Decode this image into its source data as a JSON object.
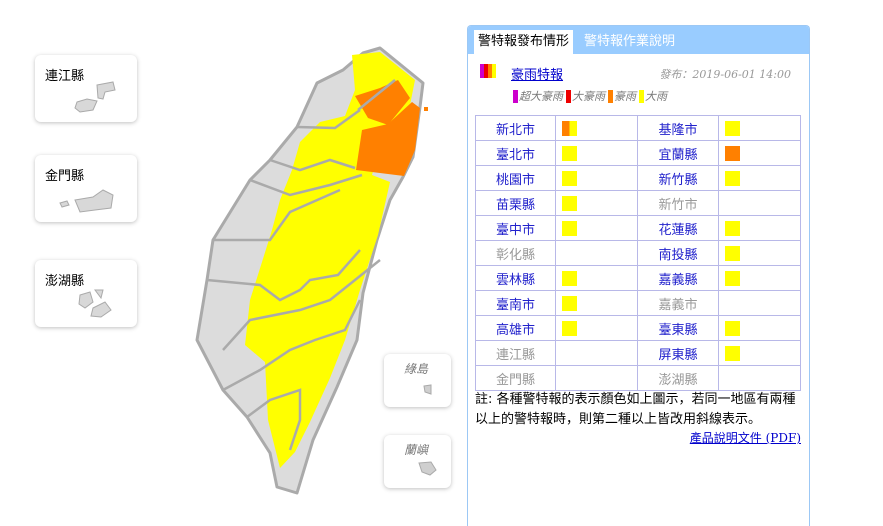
{
  "islands": [
    {
      "label": "連江縣"
    },
    {
      "label": "金門縣"
    },
    {
      "label": "澎湖縣"
    },
    {
      "label": "綠島"
    },
    {
      "label": "蘭嶼"
    }
  ],
  "tabs": [
    {
      "label": "警特報發布情形",
      "active": true
    },
    {
      "label": "警特報作業說明",
      "active": false
    }
  ],
  "product": {
    "label": "豪雨特報",
    "issued": "發布：2019-06-01 14:00"
  },
  "levels": [
    {
      "label": "超大豪雨",
      "color": "#cc00cc"
    },
    {
      "label": "大豪雨",
      "color": "#ee0000"
    },
    {
      "label": "豪雨",
      "color": "#ff8000"
    },
    {
      "label": "大雨",
      "color": "#ffff00"
    }
  ],
  "rows": [
    [
      {
        "name": "新北市",
        "active": true,
        "colors": [
          "#ff8000",
          "#ffff00"
        ]
      },
      {
        "name": "基隆市",
        "active": true,
        "colors": [
          "#ffff00"
        ]
      }
    ],
    [
      {
        "name": "臺北市",
        "active": true,
        "colors": [
          "#ffff00"
        ]
      },
      {
        "name": "宜蘭縣",
        "active": true,
        "colors": [
          "#ff8000"
        ]
      }
    ],
    [
      {
        "name": "桃園市",
        "active": true,
        "colors": [
          "#ffff00"
        ]
      },
      {
        "name": "新竹縣",
        "active": true,
        "colors": [
          "#ffff00"
        ]
      }
    ],
    [
      {
        "name": "苗栗縣",
        "active": true,
        "colors": [
          "#ffff00"
        ]
      },
      {
        "name": "新竹市",
        "active": false,
        "colors": []
      }
    ],
    [
      {
        "name": "臺中市",
        "active": true,
        "colors": [
          "#ffff00"
        ]
      },
      {
        "name": "花蓮縣",
        "active": true,
        "colors": [
          "#ffff00"
        ]
      }
    ],
    [
      {
        "name": "彰化縣",
        "active": false,
        "colors": []
      },
      {
        "name": "南投縣",
        "active": true,
        "colors": [
          "#ffff00"
        ]
      }
    ],
    [
      {
        "name": "雲林縣",
        "active": true,
        "colors": [
          "#ffff00"
        ]
      },
      {
        "name": "嘉義縣",
        "active": true,
        "colors": [
          "#ffff00"
        ]
      }
    ],
    [
      {
        "name": "臺南市",
        "active": true,
        "colors": [
          "#ffff00"
        ]
      },
      {
        "name": "嘉義市",
        "active": false,
        "colors": []
      }
    ],
    [
      {
        "name": "高雄市",
        "active": true,
        "colors": [
          "#ffff00"
        ]
      },
      {
        "name": "臺東縣",
        "active": true,
        "colors": [
          "#ffff00"
        ]
      }
    ],
    [
      {
        "name": "連江縣",
        "active": false,
        "colors": []
      },
      {
        "name": "屏東縣",
        "active": true,
        "colors": [
          "#ffff00"
        ]
      }
    ],
    [
      {
        "name": "金門縣",
        "active": false,
        "colors": []
      },
      {
        "name": "澎湖縣",
        "active": false,
        "colors": []
      }
    ]
  ],
  "note": "註: 各種警特報的表示顏色如上圖示，若同一地區有兩種以上的警特報時，則第二種以上皆改用斜線表示。",
  "pdf_link": "產品說明文件 (PDF)"
}
